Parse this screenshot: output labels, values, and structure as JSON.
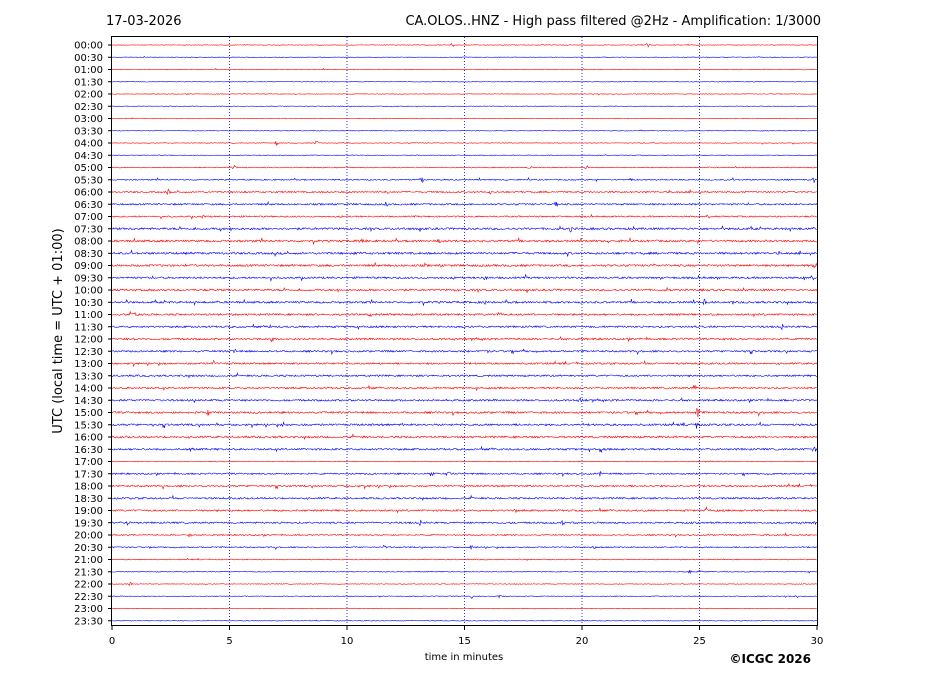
{
  "date_label": "17-03-2026",
  "station_title": "CA.OLOS..HNZ - High pass filtered @2Hz - Amplification: 1/3000",
  "copyright": "©ICGC 2026",
  "colors": {
    "even_row": "#ff0000",
    "odd_row": "#0000ff",
    "grid": "#0000aa"
  },
  "chart_data": {
    "type": "line",
    "title": "CA.OLOS..HNZ - High pass filtered @2Hz - Amplification: 1/3000",
    "xlabel": "time in minutes",
    "ylabel": "UTC (local time = UTC + 01:00)",
    "xlim": [
      0,
      30
    ],
    "x_ticks": [
      0,
      5,
      10,
      15,
      20,
      25,
      30
    ],
    "grid": "vertical dotted at 5-minute intervals",
    "row_interval_minutes": 30,
    "row_labels": [
      "00:00",
      "00:30",
      "01:00",
      "01:30",
      "02:00",
      "02:30",
      "03:00",
      "03:30",
      "04:00",
      "04:30",
      "05:00",
      "05:30",
      "06:00",
      "06:30",
      "07:00",
      "07:30",
      "08:00",
      "08:30",
      "09:00",
      "09:30",
      "10:00",
      "10:30",
      "11:00",
      "11:30",
      "12:00",
      "12:30",
      "13:00",
      "13:30",
      "14:00",
      "14:30",
      "15:00",
      "15:30",
      "16:00",
      "16:30",
      "17:00",
      "17:30",
      "18:00",
      "18:30",
      "19:00",
      "19:30",
      "20:00",
      "20:30",
      "21:00",
      "21:30",
      "22:00",
      "22:30",
      "23:00",
      "23:30"
    ],
    "noise_level": [
      0.3,
      0.3,
      0.3,
      0.3,
      0.3,
      0.3,
      0.3,
      0.3,
      0.35,
      0.3,
      0.45,
      0.6,
      0.75,
      0.8,
      0.7,
      1.0,
      1.0,
      1.0,
      1.0,
      0.9,
      0.95,
      0.95,
      0.9,
      0.9,
      0.9,
      0.85,
      0.85,
      0.85,
      0.85,
      0.9,
      0.95,
      0.95,
      0.95,
      0.9,
      0.4,
      0.75,
      0.85,
      0.85,
      0.85,
      0.85,
      0.6,
      0.6,
      0.45,
      0.4,
      0.35,
      0.35,
      0.3,
      0.3
    ],
    "events": [
      {
        "row": "00:00",
        "t": 14.5,
        "amp": 3
      },
      {
        "row": "00:00",
        "t": 22.8,
        "amp": 3
      },
      {
        "row": "04:00",
        "t": 7.0,
        "amp": 3
      },
      {
        "row": "04:00",
        "t": 8.7,
        "amp": 3
      },
      {
        "row": "05:00",
        "t": 5.2,
        "amp": 3
      },
      {
        "row": "05:00",
        "t": 17.8,
        "amp": 3
      },
      {
        "row": "05:00",
        "t": 20.2,
        "amp": 3
      },
      {
        "row": "05:30",
        "t": 13.2,
        "amp": 3
      },
      {
        "row": "05:30",
        "t": 22.1,
        "amp": 3
      },
      {
        "row": "05:30",
        "t": 29.9,
        "amp": 3
      },
      {
        "row": "06:00",
        "t": 2.4,
        "amp": 3
      },
      {
        "row": "06:00",
        "t": 11.7,
        "amp": 4
      },
      {
        "row": "06:00",
        "t": 16.1,
        "amp": 3
      },
      {
        "row": "06:30",
        "t": 11.7,
        "amp": 3
      },
      {
        "row": "06:30",
        "t": 18.9,
        "amp": 3
      },
      {
        "row": "07:00",
        "t": 3.9,
        "amp": 3
      },
      {
        "row": "07:30",
        "t": 4.6,
        "amp": 3
      },
      {
        "row": "07:30",
        "t": 19.5,
        "amp": 4
      },
      {
        "row": "08:00",
        "t": 10.6,
        "amp": 3
      },
      {
        "row": "08:00",
        "t": 13.9,
        "amp": 3
      },
      {
        "row": "08:30",
        "t": 10.5,
        "amp": 3
      },
      {
        "row": "08:30",
        "t": 15.5,
        "amp": 3
      },
      {
        "row": "09:00",
        "t": 3.1,
        "amp": 3
      },
      {
        "row": "09:00",
        "t": 29.9,
        "amp": 3
      },
      {
        "row": "09:30",
        "t": 15.9,
        "amp": 3
      },
      {
        "row": "09:30",
        "t": 23.4,
        "amp": 3
      },
      {
        "row": "09:30",
        "t": 25.8,
        "amp": 3
      },
      {
        "row": "10:30",
        "t": 15.9,
        "amp": 3
      },
      {
        "row": "10:30",
        "t": 25.2,
        "amp": 4
      },
      {
        "row": "10:30",
        "t": 26.4,
        "amp": 3
      },
      {
        "row": "11:00",
        "t": 1.0,
        "amp": 3
      },
      {
        "row": "11:00",
        "t": 11.0,
        "amp": 3
      },
      {
        "row": "11:00",
        "t": 16.5,
        "amp": 3
      },
      {
        "row": "11:30",
        "t": 6.7,
        "amp": 3
      },
      {
        "row": "11:30",
        "t": 28.5,
        "amp": 3
      },
      {
        "row": "12:00",
        "t": 1.0,
        "amp": 3
      },
      {
        "row": "12:00",
        "t": 6.8,
        "amp": 4
      },
      {
        "row": "12:30",
        "t": 5.2,
        "amp": 3
      },
      {
        "row": "12:30",
        "t": 16.0,
        "amp": 3
      },
      {
        "row": "13:00",
        "t": 4.3,
        "amp": 4
      },
      {
        "row": "14:00",
        "t": 24.8,
        "amp": 3
      },
      {
        "row": "14:30",
        "t": 20.0,
        "amp": 4
      },
      {
        "row": "15:00",
        "t": 4.1,
        "amp": 3
      },
      {
        "row": "15:00",
        "t": 24.9,
        "amp": 6
      },
      {
        "row": "15:30",
        "t": 1.8,
        "amp": 3
      },
      {
        "row": "15:30",
        "t": 7.3,
        "amp": 3
      },
      {
        "row": "15:30",
        "t": 24.9,
        "amp": 5
      },
      {
        "row": "16:30",
        "t": 3.4,
        "amp": 3
      },
      {
        "row": "16:30",
        "t": 20.8,
        "amp": 3
      },
      {
        "row": "16:30",
        "t": 29.9,
        "amp": 3
      },
      {
        "row": "17:30",
        "t": 13.6,
        "amp": 3
      },
      {
        "row": "17:30",
        "t": 14.3,
        "amp": 3
      },
      {
        "row": "17:30",
        "t": 20.8,
        "amp": 3
      },
      {
        "row": "19:00",
        "t": 17.2,
        "amp": 3
      },
      {
        "row": "19:00",
        "t": 25.3,
        "amp": 3
      },
      {
        "row": "19:30",
        "t": 0.7,
        "amp": 3
      },
      {
        "row": "19:30",
        "t": 13.1,
        "amp": 3
      },
      {
        "row": "19:30",
        "t": 19.2,
        "amp": 3
      },
      {
        "row": "19:30",
        "t": 29.8,
        "amp": 3
      },
      {
        "row": "20:00",
        "t": 3.3,
        "amp": 3
      },
      {
        "row": "20:00",
        "t": 28.7,
        "amp": 3
      },
      {
        "row": "20:30",
        "t": 11.6,
        "amp": 3
      },
      {
        "row": "20:30",
        "t": 15.3,
        "amp": 3
      },
      {
        "row": "20:30",
        "t": 20.5,
        "amp": 3
      },
      {
        "row": "21:30",
        "t": 24.6,
        "amp": 3
      },
      {
        "row": "21:30",
        "t": 25.0,
        "amp": 3
      },
      {
        "row": "22:00",
        "t": 0.8,
        "amp": 3
      },
      {
        "row": "22:30",
        "t": 15.3,
        "amp": 3
      },
      {
        "row": "22:30",
        "t": 16.5,
        "amp": 3
      },
      {
        "row": "22:30",
        "t": 29.1,
        "amp": 3
      }
    ]
  }
}
